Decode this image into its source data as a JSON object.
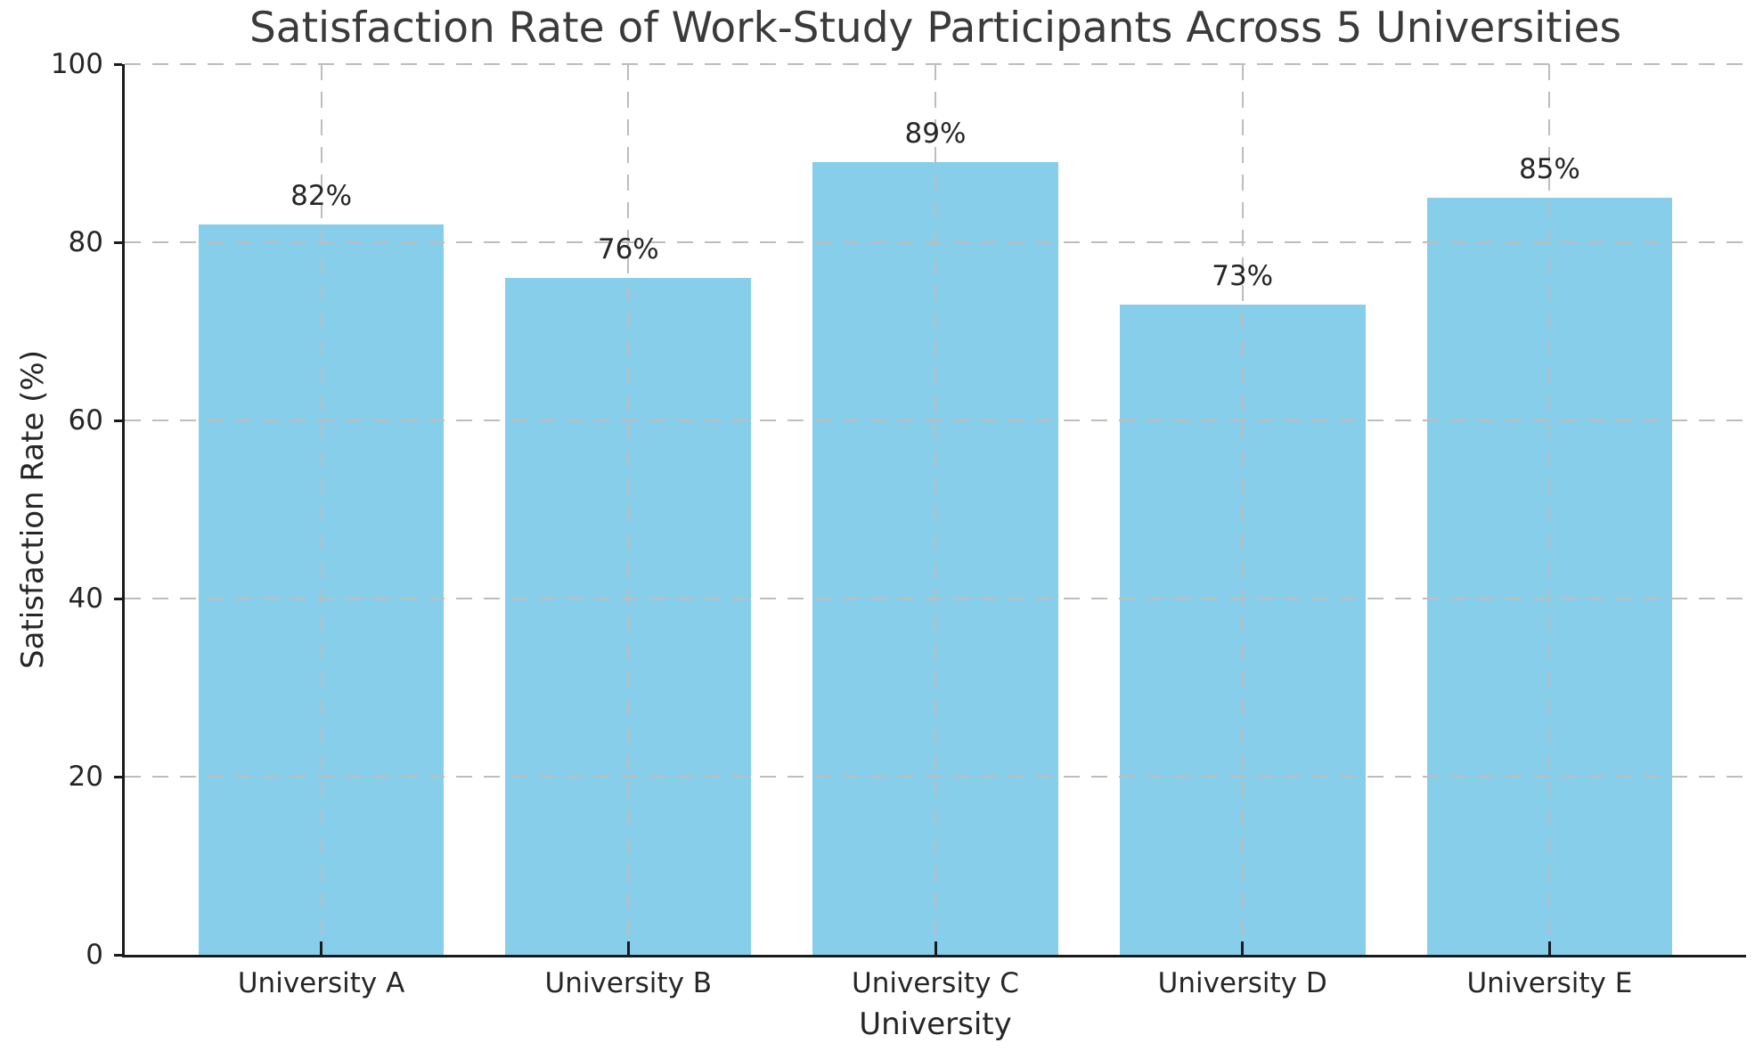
{
  "chart_data": {
    "type": "bar",
    "title": "Satisfaction Rate of Work-Study Participants Across 5 Universities",
    "xlabel": "University",
    "ylabel": "Satisfaction Rate (%)",
    "categories": [
      "University A",
      "University B",
      "University C",
      "University D",
      "University E"
    ],
    "values": [
      82,
      76,
      89,
      73,
      85
    ],
    "bar_labels": [
      "82%",
      "76%",
      "89%",
      "73%",
      "85%"
    ],
    "ylim": [
      0,
      100
    ],
    "yticks": [
      0,
      20,
      40,
      60,
      80,
      100
    ],
    "bar_width_fraction": 0.8,
    "bar_color": "#87CEEB",
    "grid": {
      "show": true,
      "style": "dashed",
      "color": "#bdbdbd",
      "horizontal": true,
      "vertical": true,
      "drawn_above_bars": true
    },
    "legend": {
      "visible": false
    },
    "background_color": "#ffffff",
    "spine_color": "#1a1a1a",
    "text_color": "#262626",
    "title_color": "#3a3a3a"
  }
}
